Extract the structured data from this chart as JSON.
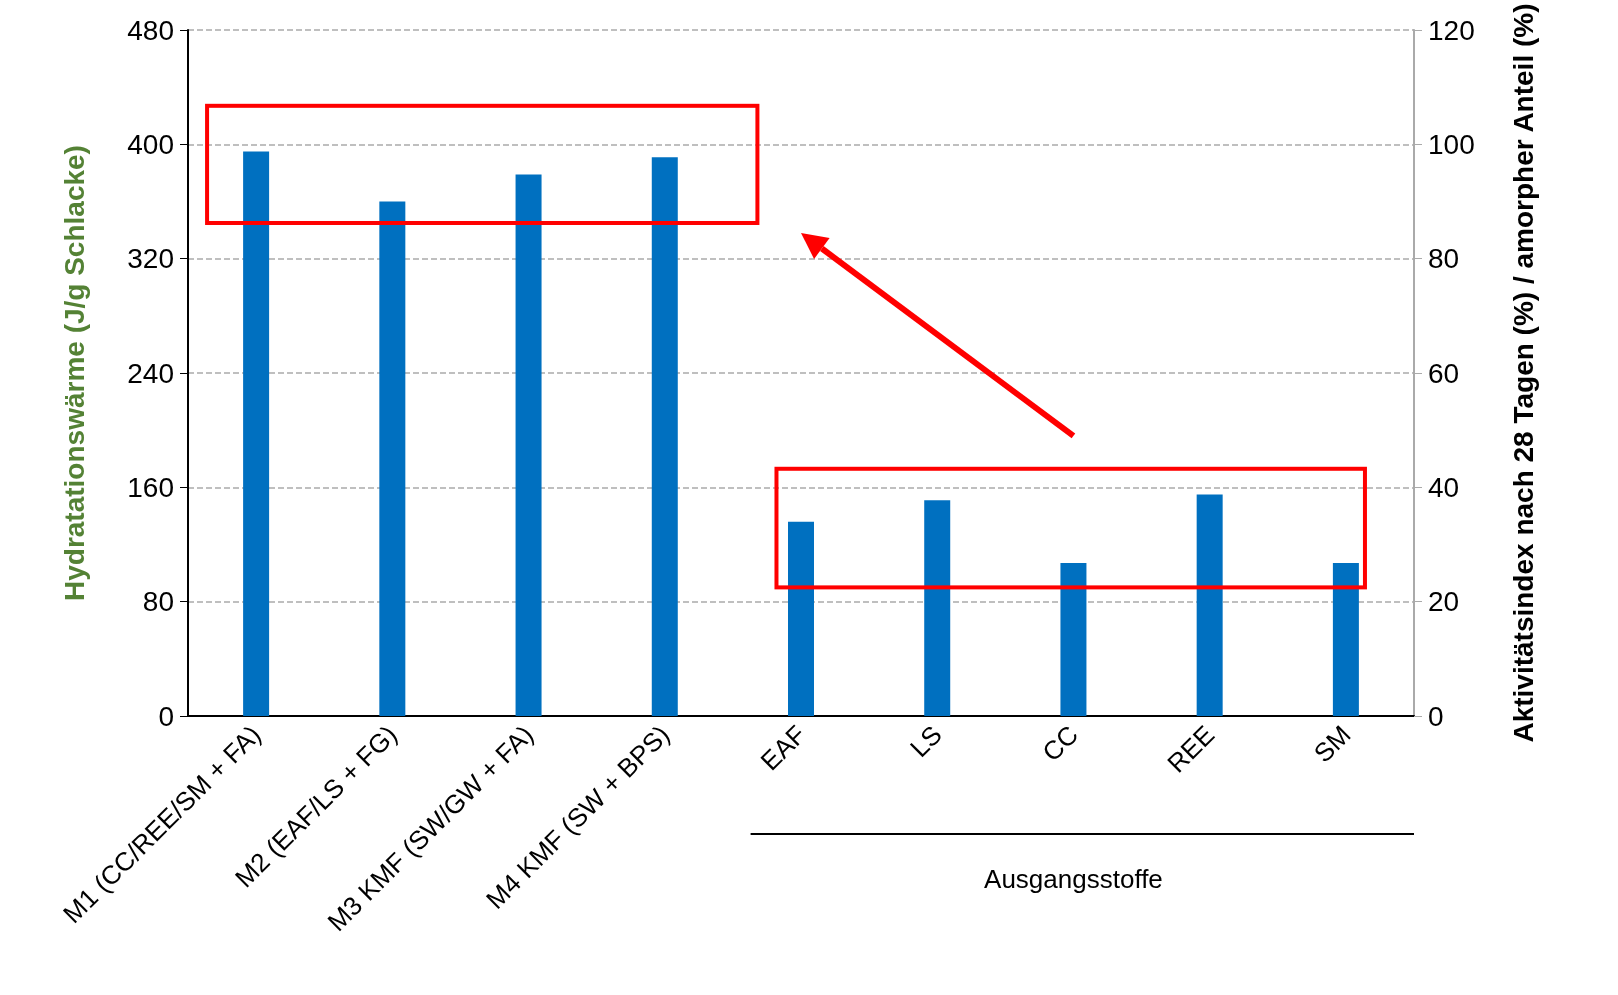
{
  "chart_data": {
    "type": "bar",
    "categories": [
      "M1 (CC/REE/SM + FA)",
      "M2 (EAF/LS + FG)",
      "M3 KMF (SW/GW + FA)",
      "M4 KMF (SW + BPS)",
      "EAF",
      "LS",
      "CC",
      "REE",
      "SM"
    ],
    "values": [
      395,
      360,
      379,
      391,
      136,
      151,
      107,
      155,
      107
    ],
    "color": "#0070c0",
    "ylabel": "Hydratationswärme (J/g Schlacke)",
    "y2label": "Aktivitätsindex nach 28 Tagen (%) / amorpher Anteil (%)",
    "ylim": [
      0,
      480
    ],
    "yticks": [
      0,
      80,
      160,
      240,
      320,
      400,
      480
    ],
    "y2lim": [
      0,
      120
    ],
    "y2ticks": [
      0,
      20,
      40,
      60,
      80,
      100,
      120
    ],
    "grid": "y",
    "annotations": [
      "Ausgangsstoffe"
    ]
  }
}
